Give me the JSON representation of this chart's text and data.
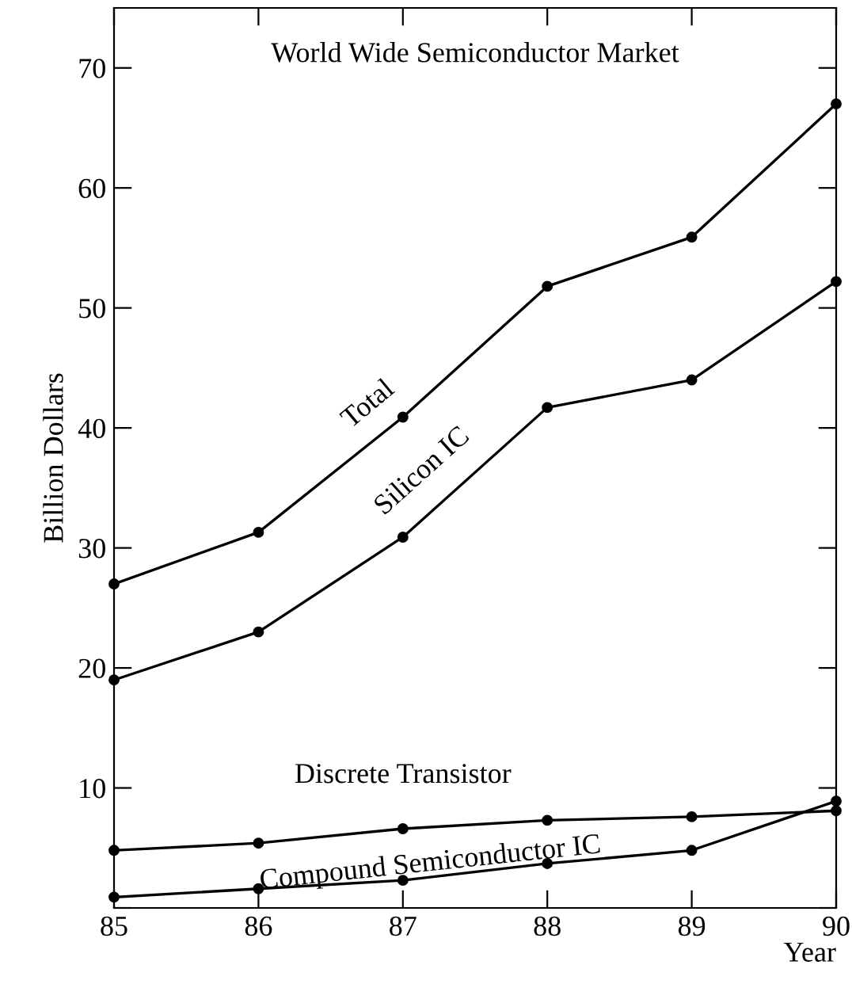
{
  "chart_data": {
    "type": "line",
    "title": "World Wide Semiconductor Market",
    "xlabel": "Year",
    "ylabel": "Billion Dollars",
    "x": [
      85,
      86,
      87,
      88,
      89,
      90
    ],
    "series": [
      {
        "name": "Total",
        "color": "#000000",
        "values": [
          27,
          31.3,
          40.9,
          51.8,
          55.9,
          67
        ]
      },
      {
        "name": "Silicon IC",
        "color": "#000000",
        "values": [
          19,
          23,
          30.9,
          41.7,
          44,
          52.2
        ]
      },
      {
        "name": "Discrete Transistor",
        "color": "#000000",
        "values": [
          4.8,
          5.4,
          6.6,
          7.3,
          7.6,
          8.1
        ]
      },
      {
        "name": "Compound Semiconductor IC",
        "color": "#000000",
        "values": [
          0.9,
          1.6,
          2.3,
          3.7,
          4.8,
          8.9
        ]
      }
    ],
    "xlim": [
      85,
      90
    ],
    "ylim": [
      0,
      75
    ],
    "xticks": [
      85,
      86,
      87,
      88,
      89,
      90
    ],
    "yticks": [
      {
        "value": 0,
        "label": null
      },
      10,
      20,
      30,
      40,
      50,
      60,
      70
    ],
    "marker": "circle",
    "line_style": "solid",
    "grid": false,
    "legend": false
  }
}
